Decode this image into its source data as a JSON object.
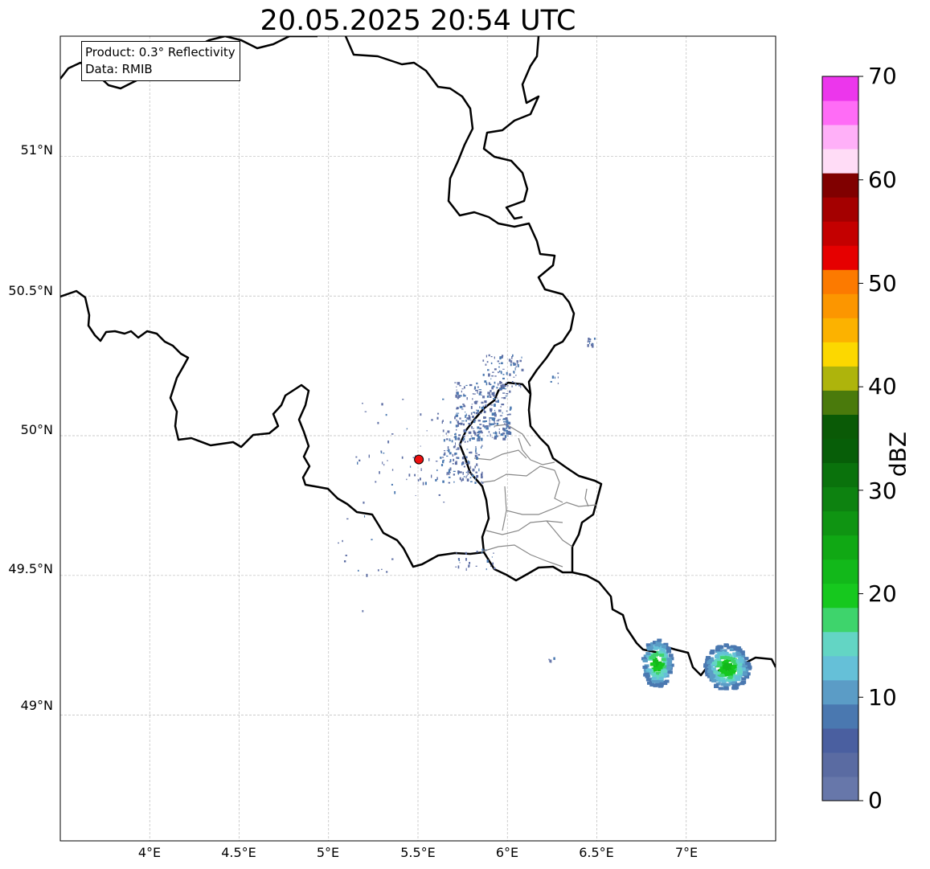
{
  "title": "20.05.2025 20:54 UTC",
  "info": {
    "product_line": "Product: 0.3° Reflectivity",
    "data_line": "Data: RMIB"
  },
  "map": {
    "lon_range": [
      3.5,
      7.5
    ],
    "lat_range": [
      48.55,
      51.43
    ],
    "gridlines": true,
    "x_ticks": [
      "4°E",
      "4.5°E",
      "5°E",
      "5.5°E",
      "6°E",
      "6.5°E",
      "7°E"
    ],
    "y_ticks": [
      "51°N",
      "50.5°N",
      "50°N",
      "49.5°N",
      "49°N"
    ],
    "radar_site": {
      "lon": 5.505,
      "lat": 49.915,
      "color": "#ee1111"
    }
  },
  "colorbar": {
    "label": "dBZ",
    "min": 0,
    "max": 70,
    "step": 2.5,
    "tick_labels": [
      "0",
      "10",
      "20",
      "30",
      "40",
      "50",
      "60",
      "70"
    ],
    "colors": [
      "#6777aa",
      "#5a6ba2",
      "#4a5fa0",
      "#4a78b0",
      "#5b9cc6",
      "#65c0d8",
      "#63d5c4",
      "#3ed46c",
      "#16c81e",
      "#12b81a",
      "#10a814",
      "#0f9412",
      "#0d8210",
      "#0a720c",
      "#075e08",
      "#0a5a06",
      "#4a7a0c",
      "#aeb40c",
      "#fcd800",
      "#fcb200",
      "#fc9600",
      "#fc7a00",
      "#e60000",
      "#c40000",
      "#a40000",
      "#800000",
      "#ffdcf6",
      "#ffb0f8",
      "#ff6cf6",
      "#ec36ec"
    ]
  }
}
